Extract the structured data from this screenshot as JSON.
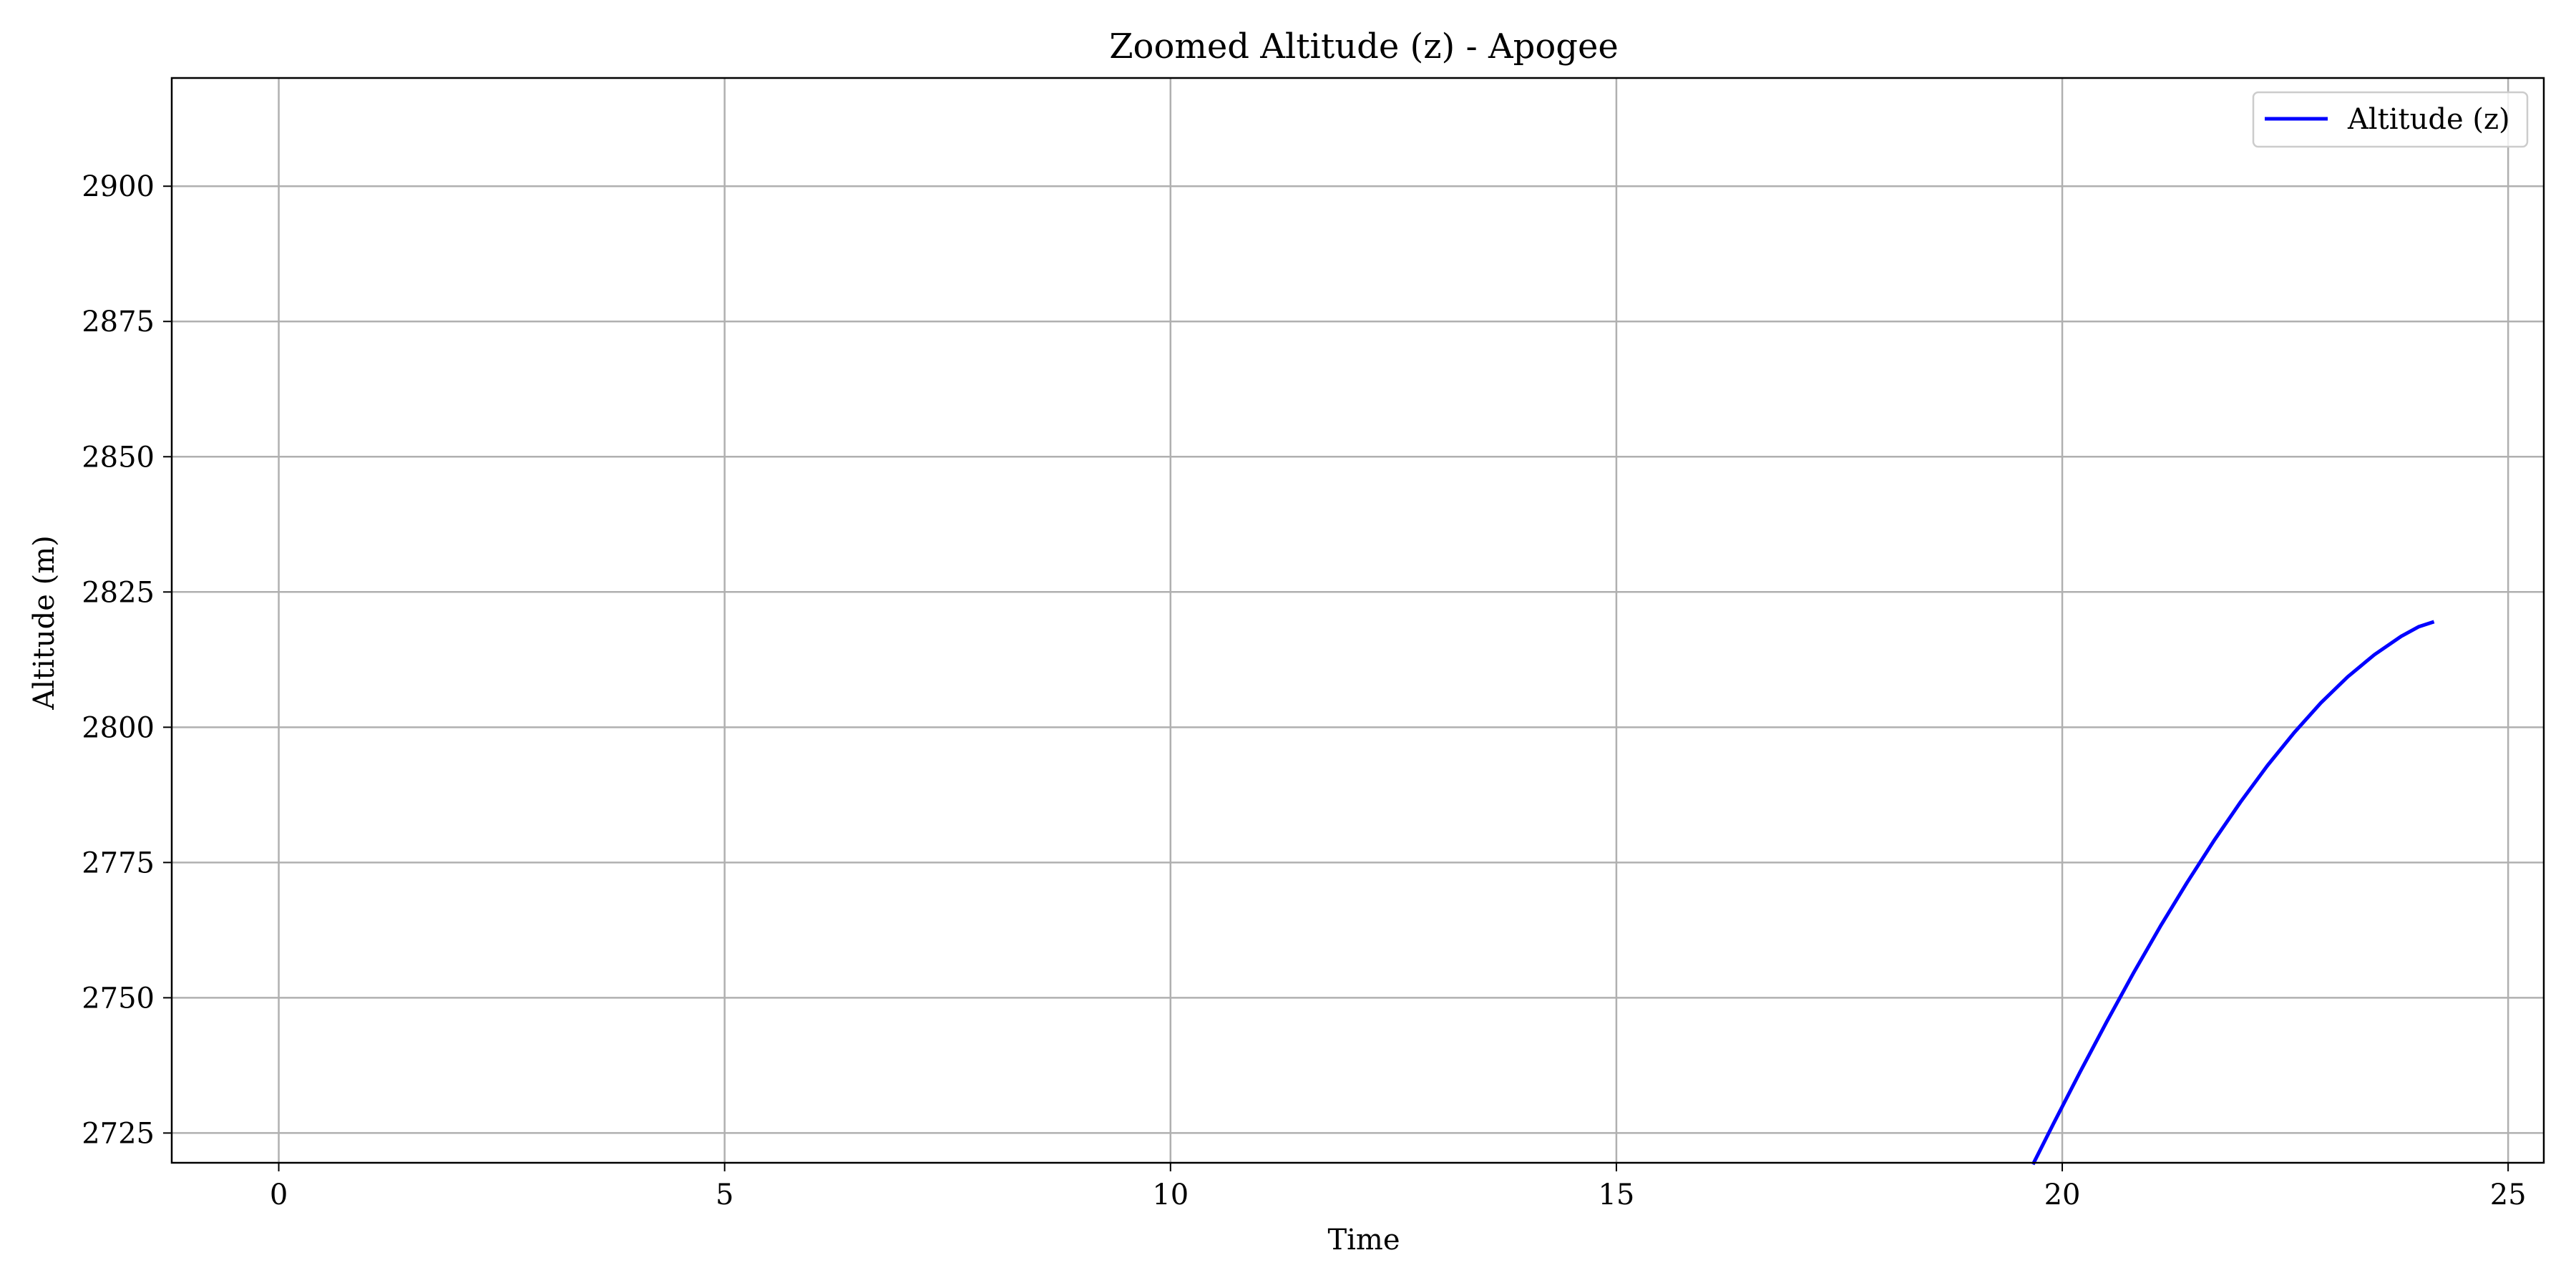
{
  "chart_data": {
    "type": "line",
    "title": "Zoomed Altitude (z) - Apogee",
    "xlabel": "Time",
    "ylabel": "Altitude (m)",
    "xlim": [
      -1.2,
      25.4
    ],
    "ylim": [
      2719.5,
      2920
    ],
    "xticks": [
      0,
      5,
      10,
      15,
      20,
      25
    ],
    "yticks": [
      2725,
      2750,
      2775,
      2800,
      2825,
      2850,
      2875,
      2900
    ],
    "grid": true,
    "legend_position": "top-right",
    "series": [
      {
        "name": "Altitude (z)",
        "color": "#0000ff",
        "x": [
          19.68,
          19.9,
          20.2,
          20.5,
          20.8,
          21.1,
          21.4,
          21.7,
          22.0,
          22.3,
          22.6,
          22.9,
          23.2,
          23.5,
          23.8,
          24.0,
          24.15
        ],
        "y": [
          2719.5,
          2726.7,
          2736.3,
          2745.6,
          2754.6,
          2763.2,
          2771.3,
          2779.0,
          2786.2,
          2792.9,
          2799.0,
          2804.5,
          2809.3,
          2813.4,
          2816.8,
          2818.6,
          2819.4
        ]
      }
    ]
  }
}
